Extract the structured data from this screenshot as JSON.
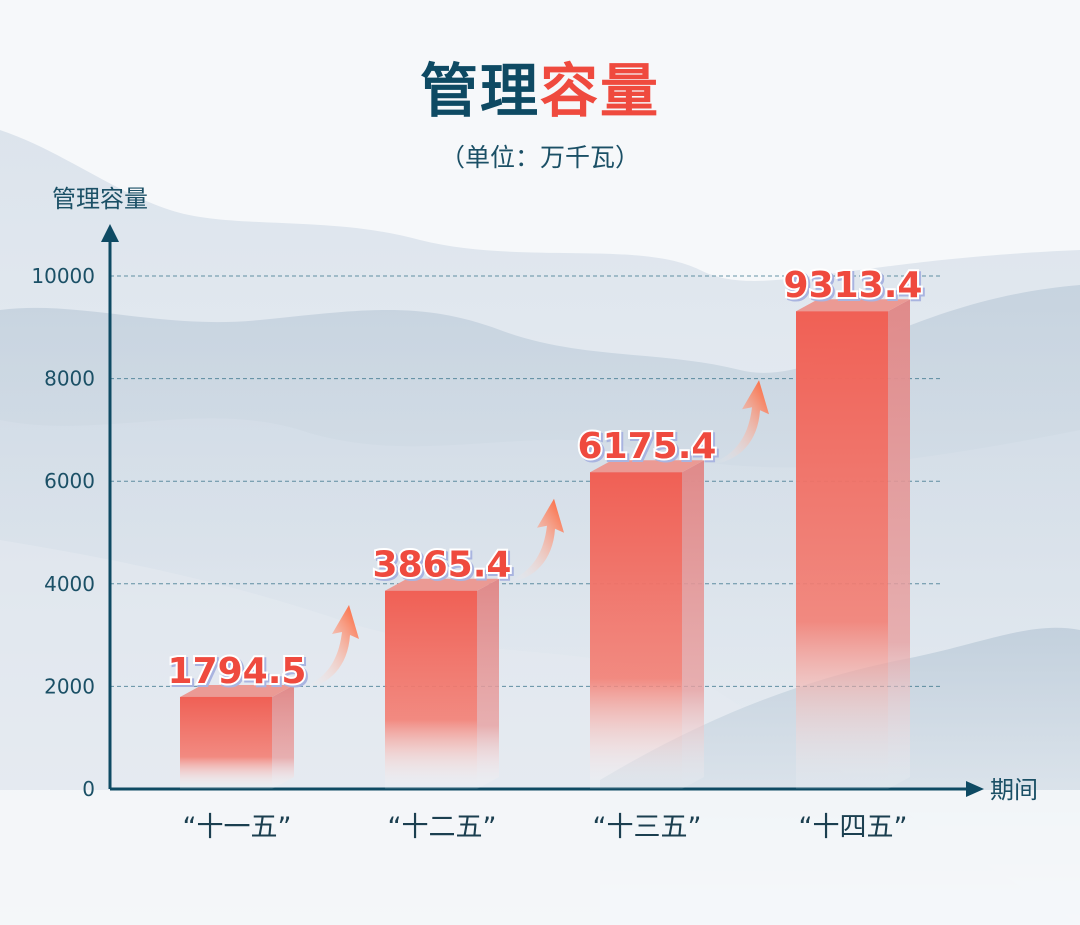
{
  "title": {
    "part1": "管理",
    "part2": "容量"
  },
  "unit": "（单位：万千瓦）",
  "colors": {
    "axis": "#0e4a63",
    "accent": "#ef4a3e",
    "bar_top": "#f06055",
    "bar_bottom": "#ffffff",
    "arrow": "#ff5a2a"
  },
  "chart_data": {
    "type": "bar",
    "title": "管理容量",
    "subtitle": "（单位：万千瓦）",
    "ylabel": "管理容量",
    "xlabel": "期间",
    "categories": [
      "“十一五”",
      "“十二五”",
      "“十三五”",
      "“十四五”"
    ],
    "values": [
      1794.5,
      3865.4,
      6175.4,
      9313.4
    ],
    "data_labels": [
      "1794.5",
      "3865.4",
      "6175.4",
      "9313.4"
    ],
    "ylim": [
      0,
      10000
    ],
    "yticks": [
      0,
      2000,
      4000,
      6000,
      8000,
      10000
    ],
    "grid": true,
    "style": "3d bars with gradient fade, upward arrows between bars"
  }
}
